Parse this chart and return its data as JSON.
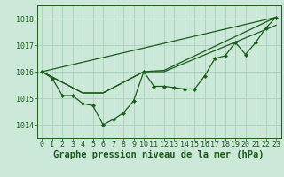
{
  "bg_color": "#cce8d8",
  "grid_color": "#aad0be",
  "line_color": "#1a5c1a",
  "marker_color": "#1a5c1a",
  "xlabel": "Graphe pression niveau de la mer (hPa)",
  "xlabel_fontsize": 7.5,
  "tick_fontsize": 6,
  "xlim": [
    -0.5,
    23.5
  ],
  "ylim": [
    1013.5,
    1018.5
  ],
  "yticks": [
    1014,
    1015,
    1016,
    1017,
    1018
  ],
  "xticks": [
    0,
    1,
    2,
    3,
    4,
    5,
    6,
    7,
    8,
    9,
    10,
    11,
    12,
    13,
    14,
    15,
    16,
    17,
    18,
    19,
    20,
    21,
    22,
    23
  ],
  "series1_x": [
    0,
    1,
    2,
    3,
    4,
    5,
    6,
    7,
    8,
    9,
    10,
    11,
    12,
    13,
    14,
    15,
    16,
    17,
    18,
    19,
    20,
    21,
    22,
    23
  ],
  "series1_y": [
    1016.0,
    1015.75,
    1015.1,
    1015.1,
    1014.8,
    1014.72,
    1014.0,
    1014.2,
    1014.45,
    1014.9,
    1016.0,
    1015.45,
    1015.45,
    1015.4,
    1015.35,
    1015.35,
    1015.85,
    1016.5,
    1016.6,
    1017.1,
    1016.65,
    1017.1,
    1017.65,
    1018.05
  ],
  "series2_x": [
    0,
    4,
    6,
    10,
    12,
    23
  ],
  "series2_y": [
    1016.0,
    1015.2,
    1015.2,
    1016.0,
    1016.05,
    1018.05
  ],
  "series3_x": [
    0,
    4,
    6,
    10,
    12,
    23
  ],
  "series3_y": [
    1016.0,
    1015.2,
    1015.2,
    1016.0,
    1016.0,
    1017.75
  ],
  "series4_x": [
    0,
    23
  ],
  "series4_y": [
    1016.0,
    1018.05
  ]
}
